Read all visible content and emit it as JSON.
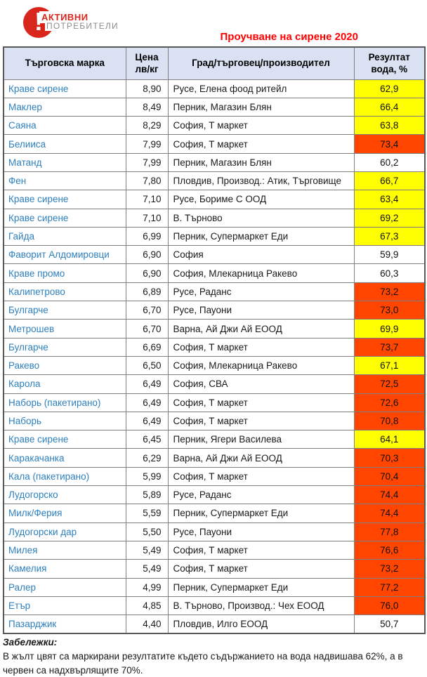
{
  "logo": {
    "exclamation": "!",
    "name_line1": "АКТИВНИ",
    "name_line2": "ПОТРЕБИТЕЛИ"
  },
  "title": "Проучване на сирене 2020",
  "table": {
    "headers": {
      "brand": "Търговска марка",
      "price": "Цена\nлв/кг",
      "city": "Град/търговец/производител",
      "result": "Резултат\nвода, %"
    },
    "rows": [
      {
        "brand": "Краве сирене",
        "price": "8,90",
        "city": "Русе, Елена фоод ритейл",
        "result": "62,9",
        "highlight": "yellow"
      },
      {
        "brand": "Маклер",
        "price": "8,49",
        "city": "Перник, Магазин Блян",
        "result": "66,4",
        "highlight": "yellow"
      },
      {
        "brand": "Саяна",
        "price": "8,29",
        "city": "София, Т маркет",
        "result": "63,8",
        "highlight": "yellow"
      },
      {
        "brand": "Белииса",
        "price": "7,99",
        "city": "София, Т маркет",
        "result": "73,4",
        "highlight": "red"
      },
      {
        "brand": "Матанд",
        "price": "7,99",
        "city": "Перник, Магазин Блян",
        "result": "60,2",
        "highlight": "none"
      },
      {
        "brand": "Фен",
        "price": "7,80",
        "city": "Пловдив, Производ.: Атик, Търговище",
        "result": "66,7",
        "highlight": "yellow"
      },
      {
        "brand": "Краве сирене",
        "price": "7,10",
        "city": "Русе, Бориме С ООД",
        "result": "63,4",
        "highlight": "yellow"
      },
      {
        "brand": "Краве сирене",
        "price": "7,10",
        "city": "В. Търново",
        "result": "69,2",
        "highlight": "yellow"
      },
      {
        "brand": "Гайда",
        "price": "6,99",
        "city": "Перник, Супермаркет Еди",
        "result": "67,3",
        "highlight": "yellow"
      },
      {
        "brand": "Фаворит Алдомировци",
        "price": "6,90",
        "city": "София",
        "result": "59,9",
        "highlight": "none"
      },
      {
        "brand": "Краве промо",
        "price": "6,90",
        "city": "София, Млекарница Ракево",
        "result": "60,3",
        "highlight": "none"
      },
      {
        "brand": "Калипетрово",
        "price": "6,89",
        "city": "Русе, Раданс",
        "result": "73,2",
        "highlight": "red"
      },
      {
        "brand": "Булгарче",
        "price": "6,70",
        "city": "Русе, Пауони",
        "result": "73,0",
        "highlight": "red"
      },
      {
        "brand": "Метрошев",
        "price": "6,70",
        "city": "Варна, Ай Джи Ай ЕООД",
        "result": "69,9",
        "highlight": "yellow"
      },
      {
        "brand": "Булгарче",
        "price": "6,69",
        "city": "София, Т маркет",
        "result": "73,7",
        "highlight": "red"
      },
      {
        "brand": "Ракево",
        "price": "6,50",
        "city": "София, Млекарница Ракево",
        "result": "67,1",
        "highlight": "yellow"
      },
      {
        "brand": "Карола",
        "price": "6,49",
        "city": "София, СВА",
        "result": "72,5",
        "highlight": "red"
      },
      {
        "brand": "Наборь (пакетирано)",
        "price": "6,49",
        "city": "София, Т маркет",
        "result": "72,6",
        "highlight": "red"
      },
      {
        "brand": "Наборь",
        "price": "6,49",
        "city": "София, Т маркет",
        "result": "70,8",
        "highlight": "red"
      },
      {
        "brand": "Краве сирене",
        "price": "6,45",
        "city": "Перник, Ягери Василева",
        "result": "64,1",
        "highlight": "yellow"
      },
      {
        "brand": "Каракачанка",
        "price": "6,29",
        "city": "Варна, Ай Джи Ай ЕООД",
        "result": "70,3",
        "highlight": "red"
      },
      {
        "brand": "Кала (пакетирано)",
        "price": "5,99",
        "city": "София, Т маркет",
        "result": "70,4",
        "highlight": "red"
      },
      {
        "brand": "Лудогорско",
        "price": "5,89",
        "city": "Русе, Раданс",
        "result": "74,4",
        "highlight": "red"
      },
      {
        "brand": "Милк/Ферия",
        "price": "5,59",
        "city": "Перник, Супермаркет Еди",
        "result": "74,4",
        "highlight": "red"
      },
      {
        "brand": "Лудогорски дар",
        "price": "5,50",
        "city": "Русе, Пауони",
        "result": "77,8",
        "highlight": "red"
      },
      {
        "brand": "Милея",
        "price": "5,49",
        "city": "София, Т маркет",
        "result": "76,6",
        "highlight": "red"
      },
      {
        "brand": "Камелия",
        "price": "5,49",
        "city": "София, Т маркет",
        "result": "73,2",
        "highlight": "red"
      },
      {
        "brand": "Ралер",
        "price": "4,99",
        "city": "Перник, Супермаркет Еди",
        "result": "77,2",
        "highlight": "red"
      },
      {
        "brand": "Етър",
        "price": "4,85",
        "city": "В. Търново, Производ.: Чех ЕООД",
        "result": "76,0",
        "highlight": "red"
      },
      {
        "brand": "Пазарджик",
        "price": "4,40",
        "city": "Пловдив, Илго ЕООД",
        "result": "50,7",
        "highlight": "none"
      }
    ]
  },
  "notes": {
    "label": "Забележки:",
    "text": "В жълт цвят са маркирани резултатите където съдържанието на вода надвишава 62%, а в червен са надхвърлящите 70%."
  },
  "colors": {
    "yellow": "#FFFF00",
    "red": "#FF4500",
    "none": "#FFFFFF",
    "header_bg": "#D9E1F2",
    "brand_blue": "#2E80BE",
    "title_red": "#FF0000",
    "logo_red": "#D9261C"
  }
}
